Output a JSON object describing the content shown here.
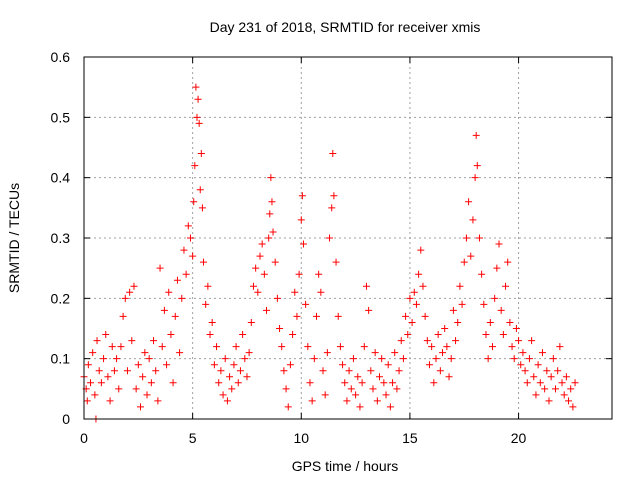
{
  "chart_data": {
    "type": "scatter",
    "title": "Day 231 of 2018, SRMTID for receiver xmis",
    "xlabel": "GPS time / hours",
    "ylabel": "SRMTID / TECUs",
    "xlim": [
      0,
      24.3
    ],
    "ylim": [
      0,
      0.6
    ],
    "x_ticks": [
      0,
      5,
      10,
      15,
      20
    ],
    "x_tick_labels": [
      "0",
      "5",
      "10",
      "15",
      "20"
    ],
    "y_ticks": [
      0,
      0.1,
      0.2,
      0.3,
      0.4,
      0.5,
      0.6
    ],
    "y_tick_labels": [
      "0",
      "0.1",
      "0.2",
      "0.3",
      "0.4",
      "0.5",
      "0.6"
    ],
    "grid": true,
    "marker": "plus",
    "color": "#ff0000",
    "series": [
      {
        "name": "SRMTID",
        "points": [
          [
            0.0,
            0.07
          ],
          [
            0.1,
            0.05
          ],
          [
            0.15,
            0.03
          ],
          [
            0.2,
            0.09
          ],
          [
            0.3,
            0.06
          ],
          [
            0.4,
            0.11
          ],
          [
            0.5,
            0.04
          ],
          [
            0.55,
            0.0
          ],
          [
            0.6,
            0.13
          ],
          [
            0.7,
            0.08
          ],
          [
            0.8,
            0.06
          ],
          [
            0.9,
            0.1
          ],
          [
            1.0,
            0.14
          ],
          [
            1.1,
            0.07
          ],
          [
            1.2,
            0.03
          ],
          [
            1.3,
            0.12
          ],
          [
            1.4,
            0.08
          ],
          [
            1.5,
            0.1
          ],
          [
            1.6,
            0.05
          ],
          [
            1.7,
            0.12
          ],
          [
            1.8,
            0.17
          ],
          [
            1.9,
            0.2
          ],
          [
            2.0,
            0.08
          ],
          [
            2.1,
            0.21
          ],
          [
            2.2,
            0.13
          ],
          [
            2.3,
            0.22
          ],
          [
            2.4,
            0.05
          ],
          [
            2.5,
            0.09
          ],
          [
            2.6,
            0.02
          ],
          [
            2.7,
            0.07
          ],
          [
            2.8,
            0.11
          ],
          [
            2.9,
            0.04
          ],
          [
            3.0,
            0.1
          ],
          [
            3.1,
            0.06
          ],
          [
            3.2,
            0.13
          ],
          [
            3.3,
            0.08
          ],
          [
            3.4,
            0.03
          ],
          [
            3.5,
            0.25
          ],
          [
            3.6,
            0.12
          ],
          [
            3.7,
            0.18
          ],
          [
            3.8,
            0.09
          ],
          [
            3.9,
            0.21
          ],
          [
            4.0,
            0.14
          ],
          [
            4.1,
            0.06
          ],
          [
            4.2,
            0.17
          ],
          [
            4.3,
            0.23
          ],
          [
            4.4,
            0.11
          ],
          [
            4.5,
            0.2
          ],
          [
            4.6,
            0.28
          ],
          [
            4.7,
            0.24
          ],
          [
            4.8,
            0.32
          ],
          [
            4.9,
            0.3
          ],
          [
            5.0,
            0.27
          ],
          [
            5.05,
            0.36
          ],
          [
            5.1,
            0.42
          ],
          [
            5.15,
            0.55
          ],
          [
            5.2,
            0.5
          ],
          [
            5.25,
            0.53
          ],
          [
            5.3,
            0.49
          ],
          [
            5.35,
            0.38
          ],
          [
            5.4,
            0.44
          ],
          [
            5.45,
            0.35
          ],
          [
            5.5,
            0.26
          ],
          [
            5.6,
            0.19
          ],
          [
            5.7,
            0.22
          ],
          [
            5.8,
            0.14
          ],
          [
            5.9,
            0.16
          ],
          [
            6.0,
            0.09
          ],
          [
            6.1,
            0.12
          ],
          [
            6.2,
            0.06
          ],
          [
            6.3,
            0.08
          ],
          [
            6.4,
            0.04
          ],
          [
            6.5,
            0.1
          ],
          [
            6.6,
            0.03
          ],
          [
            6.7,
            0.07
          ],
          [
            6.8,
            0.05
          ],
          [
            6.9,
            0.09
          ],
          [
            7.0,
            0.12
          ],
          [
            7.1,
            0.06
          ],
          [
            7.2,
            0.08
          ],
          [
            7.3,
            0.14
          ],
          [
            7.4,
            0.1
          ],
          [
            7.5,
            0.07
          ],
          [
            7.6,
            0.11
          ],
          [
            7.7,
            0.16
          ],
          [
            7.8,
            0.22
          ],
          [
            7.9,
            0.25
          ],
          [
            8.0,
            0.21
          ],
          [
            8.1,
            0.27
          ],
          [
            8.2,
            0.29
          ],
          [
            8.3,
            0.24
          ],
          [
            8.4,
            0.18
          ],
          [
            8.5,
            0.3
          ],
          [
            8.55,
            0.34
          ],
          [
            8.6,
            0.4
          ],
          [
            8.65,
            0.36
          ],
          [
            8.7,
            0.31
          ],
          [
            8.8,
            0.26
          ],
          [
            8.9,
            0.2
          ],
          [
            9.0,
            0.15
          ],
          [
            9.1,
            0.12
          ],
          [
            9.2,
            0.08
          ],
          [
            9.3,
            0.05
          ],
          [
            9.4,
            0.02
          ],
          [
            9.5,
            0.09
          ],
          [
            9.6,
            0.14
          ],
          [
            9.7,
            0.21
          ],
          [
            9.8,
            0.17
          ],
          [
            9.9,
            0.24
          ],
          [
            10.0,
            0.33
          ],
          [
            10.05,
            0.37
          ],
          [
            10.1,
            0.29
          ],
          [
            10.2,
            0.19
          ],
          [
            10.3,
            0.12
          ],
          [
            10.4,
            0.06
          ],
          [
            10.5,
            0.03
          ],
          [
            10.6,
            0.1
          ],
          [
            10.7,
            0.17
          ],
          [
            10.8,
            0.24
          ],
          [
            10.9,
            0.21
          ],
          [
            11.0,
            0.08
          ],
          [
            11.1,
            0.04
          ],
          [
            11.2,
            0.11
          ],
          [
            11.3,
            0.3
          ],
          [
            11.4,
            0.35
          ],
          [
            11.45,
            0.44
          ],
          [
            11.5,
            0.37
          ],
          [
            11.6,
            0.26
          ],
          [
            11.7,
            0.17
          ],
          [
            11.8,
            0.12
          ],
          [
            11.9,
            0.09
          ],
          [
            12.0,
            0.06
          ],
          [
            12.1,
            0.03
          ],
          [
            12.2,
            0.08
          ],
          [
            12.3,
            0.05
          ],
          [
            12.4,
            0.1
          ],
          [
            12.5,
            0.04
          ],
          [
            12.6,
            0.07
          ],
          [
            12.7,
            0.02
          ],
          [
            12.8,
            0.06
          ],
          [
            12.9,
            0.12
          ],
          [
            13.0,
            0.22
          ],
          [
            13.1,
            0.18
          ],
          [
            13.2,
            0.08
          ],
          [
            13.3,
            0.05
          ],
          [
            13.4,
            0.11
          ],
          [
            13.5,
            0.03
          ],
          [
            13.6,
            0.07
          ],
          [
            13.7,
            0.1
          ],
          [
            13.8,
            0.06
          ],
          [
            13.9,
            0.04
          ],
          [
            14.0,
            0.09
          ],
          [
            14.1,
            0.02
          ],
          [
            14.2,
            0.06
          ],
          [
            14.3,
            0.11
          ],
          [
            14.4,
            0.05
          ],
          [
            14.5,
            0.08
          ],
          [
            14.6,
            0.13
          ],
          [
            14.7,
            0.1
          ],
          [
            14.8,
            0.17
          ],
          [
            14.9,
            0.14
          ],
          [
            15.0,
            0.2
          ],
          [
            15.1,
            0.16
          ],
          [
            15.2,
            0.21
          ],
          [
            15.3,
            0.19
          ],
          [
            15.4,
            0.24
          ],
          [
            15.5,
            0.28
          ],
          [
            15.6,
            0.22
          ],
          [
            15.7,
            0.17
          ],
          [
            15.8,
            0.13
          ],
          [
            15.9,
            0.09
          ],
          [
            16.0,
            0.12
          ],
          [
            16.1,
            0.06
          ],
          [
            16.2,
            0.1
          ],
          [
            16.3,
            0.14
          ],
          [
            16.4,
            0.08
          ],
          [
            16.5,
            0.11
          ],
          [
            16.6,
            0.15
          ],
          [
            16.7,
            0.12
          ],
          [
            16.8,
            0.07
          ],
          [
            16.9,
            0.1
          ],
          [
            17.0,
            0.18
          ],
          [
            17.1,
            0.13
          ],
          [
            17.2,
            0.16
          ],
          [
            17.3,
            0.22
          ],
          [
            17.4,
            0.19
          ],
          [
            17.5,
            0.26
          ],
          [
            17.6,
            0.3
          ],
          [
            17.7,
            0.36
          ],
          [
            17.8,
            0.27
          ],
          [
            17.9,
            0.33
          ],
          [
            18.0,
            0.4
          ],
          [
            18.05,
            0.47
          ],
          [
            18.1,
            0.42
          ],
          [
            18.2,
            0.3
          ],
          [
            18.3,
            0.24
          ],
          [
            18.4,
            0.19
          ],
          [
            18.5,
            0.14
          ],
          [
            18.6,
            0.1
          ],
          [
            18.7,
            0.16
          ],
          [
            18.8,
            0.12
          ],
          [
            18.9,
            0.2
          ],
          [
            19.0,
            0.25
          ],
          [
            19.1,
            0.29
          ],
          [
            19.2,
            0.18
          ],
          [
            19.3,
            0.14
          ],
          [
            19.4,
            0.22
          ],
          [
            19.5,
            0.26
          ],
          [
            19.6,
            0.16
          ],
          [
            19.7,
            0.12
          ],
          [
            19.8,
            0.1
          ],
          [
            19.9,
            0.15
          ],
          [
            20.0,
            0.13
          ],
          [
            20.1,
            0.09
          ],
          [
            20.2,
            0.11
          ],
          [
            20.3,
            0.08
          ],
          [
            20.4,
            0.06
          ],
          [
            20.5,
            0.1
          ],
          [
            20.6,
            0.13
          ],
          [
            20.7,
            0.07
          ],
          [
            20.8,
            0.04
          ],
          [
            20.9,
            0.09
          ],
          [
            21.0,
            0.06
          ],
          [
            21.1,
            0.11
          ],
          [
            21.2,
            0.05
          ],
          [
            21.3,
            0.08
          ],
          [
            21.4,
            0.03
          ],
          [
            21.5,
            0.07
          ],
          [
            21.6,
            0.1
          ],
          [
            21.7,
            0.05
          ],
          [
            21.8,
            0.08
          ],
          [
            21.9,
            0.12
          ],
          [
            22.0,
            0.06
          ],
          [
            22.1,
            0.04
          ],
          [
            22.2,
            0.07
          ],
          [
            22.3,
            0.03
          ],
          [
            22.4,
            0.05
          ],
          [
            22.5,
            0.02
          ],
          [
            22.6,
            0.06
          ]
        ]
      }
    ]
  }
}
